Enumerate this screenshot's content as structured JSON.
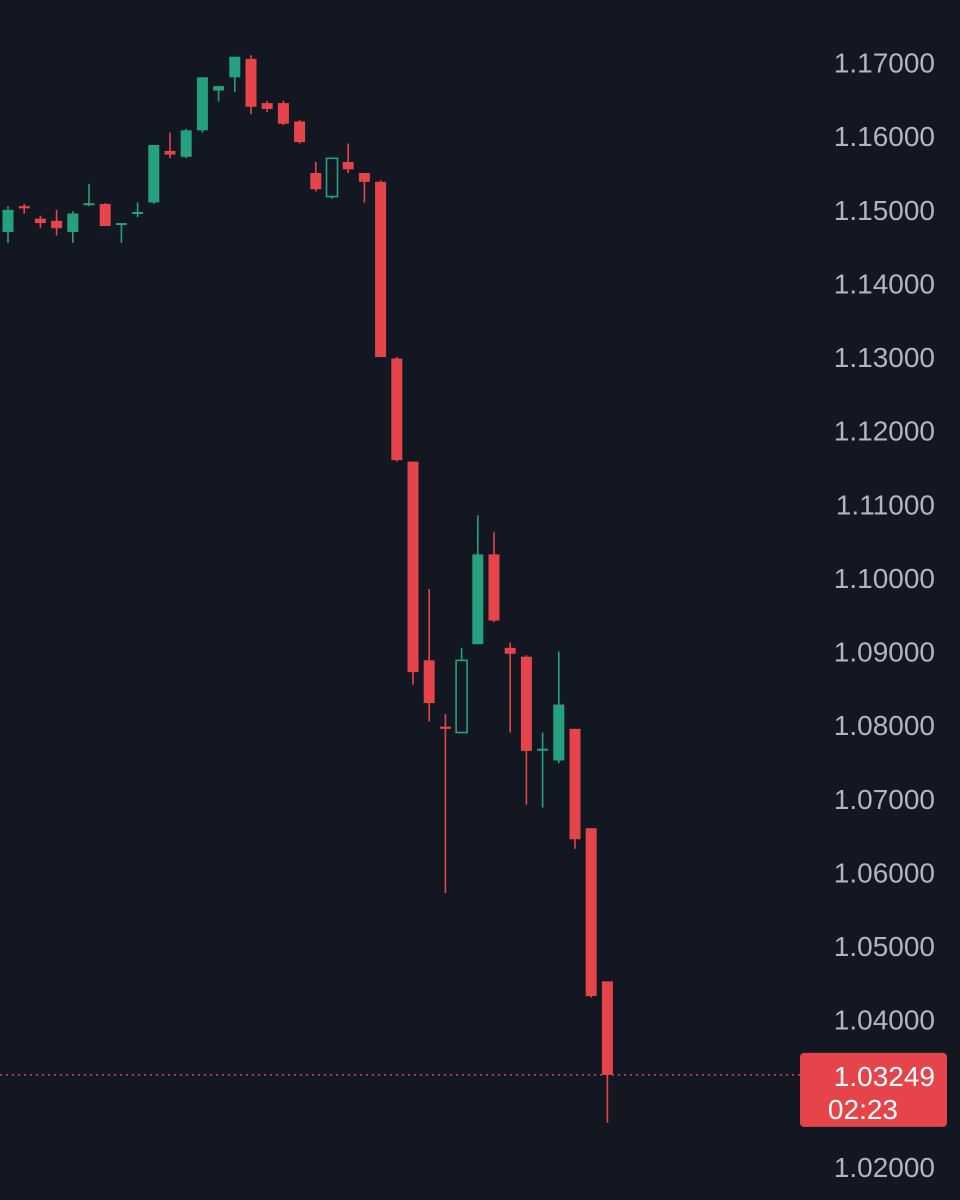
{
  "colors": {
    "background": "#131722",
    "up": "#26a17f",
    "down": "#e5454a",
    "axis_text": "#b2b5be",
    "price_tag": "#e5454a",
    "price_tag_text": "#ffffff"
  },
  "price_tag": {
    "price": "1.03249",
    "countdown": "02:23"
  },
  "chart_data": {
    "type": "candlestick",
    "title": "",
    "xlabel": "",
    "ylabel": "",
    "ylim": [
      1.0155,
      1.1785
    ],
    "grid": false,
    "y_ticks": [
      "1.02000",
      "1.03000",
      "1.04000",
      "1.05000",
      "1.06000",
      "1.07000",
      "1.08000",
      "1.09000",
      "1.10000",
      "1.11000",
      "1.12000",
      "1.13000",
      "1.14000",
      "1.15000",
      "1.16000",
      "1.17000"
    ],
    "y_tick_values": [
      1.02,
      1.03,
      1.04,
      1.05,
      1.06,
      1.07,
      1.08,
      1.09,
      1.1,
      1.11,
      1.12,
      1.13,
      1.14,
      1.15,
      1.16,
      1.17
    ],
    "hidden_tick_values": [
      1.03
    ],
    "last_price": 1.03249,
    "candles": [
      {
        "open": 1.147,
        "high": 1.1505,
        "low": 1.1455,
        "close": 1.15,
        "hollow": false
      },
      {
        "open": 1.1505,
        "high": 1.1508,
        "low": 1.1495,
        "close": 1.1502,
        "hollow": false
      },
      {
        "open": 1.1488,
        "high": 1.1492,
        "low": 1.1475,
        "close": 1.1482,
        "hollow": false
      },
      {
        "open": 1.1485,
        "high": 1.15,
        "low": 1.1465,
        "close": 1.1475,
        "hollow": false
      },
      {
        "open": 1.147,
        "high": 1.1498,
        "low": 1.1455,
        "close": 1.1495,
        "hollow": false
      },
      {
        "open": 1.1507,
        "high": 1.1535,
        "low": 1.1505,
        "close": 1.1509,
        "hollow": false
      },
      {
        "open": 1.1508,
        "high": 1.1509,
        "low": 1.1478,
        "close": 1.1478,
        "hollow": false
      },
      {
        "open": 1.148,
        "high": 1.1482,
        "low": 1.1455,
        "close": 1.1482,
        "hollow": false
      },
      {
        "open": 1.1495,
        "high": 1.151,
        "low": 1.149,
        "close": 1.1497,
        "hollow": false
      },
      {
        "open": 1.151,
        "high": 1.1588,
        "low": 1.1508,
        "close": 1.1588,
        "hollow": false
      },
      {
        "open": 1.158,
        "high": 1.1605,
        "low": 1.157,
        "close": 1.1575,
        "hollow": false
      },
      {
        "open": 1.1572,
        "high": 1.161,
        "low": 1.157,
        "close": 1.1608,
        "hollow": false
      },
      {
        "open": 1.1608,
        "high": 1.168,
        "low": 1.1605,
        "close": 1.168,
        "hollow": false
      },
      {
        "open": 1.1662,
        "high": 1.1668,
        "low": 1.1647,
        "close": 1.1668,
        "hollow": false
      },
      {
        "open": 1.168,
        "high": 1.1708,
        "low": 1.166,
        "close": 1.1708,
        "hollow": false
      },
      {
        "open": 1.1705,
        "high": 1.171,
        "low": 1.163,
        "close": 1.164,
        "hollow": false
      },
      {
        "open": 1.1645,
        "high": 1.1648,
        "low": 1.1633,
        "close": 1.1637,
        "hollow": false
      },
      {
        "open": 1.1645,
        "high": 1.1648,
        "low": 1.1615,
        "close": 1.1617,
        "hollow": false
      },
      {
        "open": 1.162,
        "high": 1.1622,
        "low": 1.159,
        "close": 1.1592,
        "hollow": false
      },
      {
        "open": 1.155,
        "high": 1.1565,
        "low": 1.1525,
        "close": 1.1528,
        "hollow": false
      },
      {
        "open": 1.1518,
        "high": 1.157,
        "low": 1.1515,
        "close": 1.157,
        "hollow": true
      },
      {
        "open": 1.1565,
        "high": 1.159,
        "low": 1.155,
        "close": 1.1555,
        "hollow": false
      },
      {
        "open": 1.155,
        "high": 1.155,
        "low": 1.151,
        "close": 1.1538,
        "hollow": false
      },
      {
        "open": 1.1538,
        "high": 1.154,
        "low": 1.13,
        "close": 1.13,
        "hollow": false
      },
      {
        "open": 1.1298,
        "high": 1.13,
        "low": 1.1158,
        "close": 1.116,
        "hollow": false
      },
      {
        "open": 1.1158,
        "high": 1.1158,
        "low": 1.0855,
        "close": 1.0872,
        "hollow": false
      },
      {
        "open": 1.0888,
        "high": 1.0985,
        "low": 1.0805,
        "close": 1.083,
        "hollow": false
      },
      {
        "open": 1.0798,
        "high": 1.0815,
        "low": 1.0572,
        "close": 1.0795,
        "hollow": false
      },
      {
        "open": 1.079,
        "high": 1.0905,
        "low": 1.079,
        "close": 1.0888,
        "hollow": true
      },
      {
        "open": 1.091,
        "high": 1.1085,
        "low": 1.091,
        "close": 1.1032,
        "hollow": false
      },
      {
        "open": 1.1032,
        "high": 1.1062,
        "low": 1.094,
        "close": 1.0942,
        "hollow": false
      },
      {
        "open": 1.0905,
        "high": 1.0912,
        "low": 1.079,
        "close": 1.0897,
        "hollow": false
      },
      {
        "open": 1.0893,
        "high": 1.0895,
        "low": 1.0692,
        "close": 1.0765,
        "hollow": false
      },
      {
        "open": 1.0768,
        "high": 1.079,
        "low": 1.0688,
        "close": 1.0768,
        "hollow": false
      },
      {
        "open": 1.0752,
        "high": 1.09,
        "low": 1.0748,
        "close": 1.0828,
        "hollow": false
      },
      {
        "open": 1.0795,
        "high": 1.0795,
        "low": 1.0632,
        "close": 1.0645,
        "hollow": false
      },
      {
        "open": 1.066,
        "high": 1.066,
        "low": 1.043,
        "close": 1.0432,
        "hollow": false
      },
      {
        "open": 1.0452,
        "high": 1.0452,
        "low": 1.026,
        "close": 1.0325,
        "hollow": false
      }
    ]
  }
}
